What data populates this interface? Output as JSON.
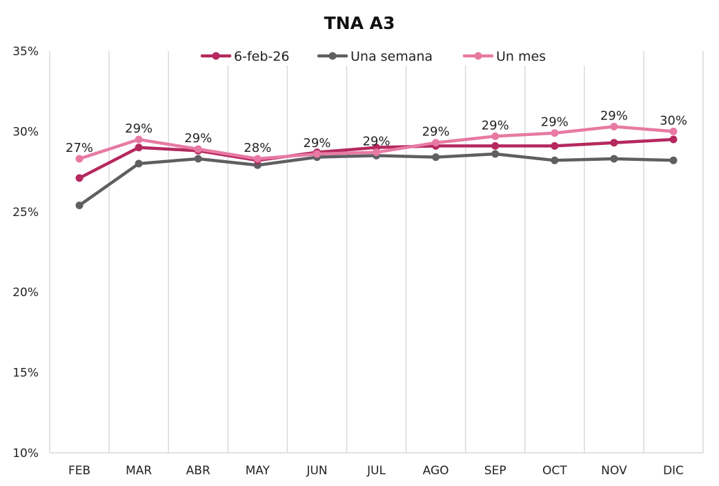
{
  "chart_data": {
    "type": "line",
    "title": "TNA A3",
    "xlabel": "",
    "ylabel": "",
    "categories": [
      "FEB",
      "MAR",
      "ABR",
      "MAY",
      "JUN",
      "JUL",
      "AGO",
      "SEP",
      "OCT",
      "NOV",
      "DIC"
    ],
    "ylim": [
      10,
      35
    ],
    "yticks": [
      10,
      15,
      20,
      25,
      30,
      35
    ],
    "ytick_labels": [
      "10%",
      "15%",
      "20%",
      "25%",
      "30%",
      "35%"
    ],
    "grid": "vertical",
    "legend_position": "top-center",
    "series": [
      {
        "name": "6-feb-26",
        "color": "#b5295e",
        "values": [
          27.1,
          29.0,
          28.8,
          28.2,
          28.7,
          29.0,
          29.1,
          29.1,
          29.1,
          29.3,
          29.5
        ]
      },
      {
        "name": "Una semana",
        "color": "#5f5f62",
        "values": [
          25.4,
          28.0,
          28.3,
          27.9,
          28.4,
          28.5,
          28.4,
          28.6,
          28.2,
          28.3,
          28.2
        ]
      },
      {
        "name": "Un mes",
        "color": "#e77aa3",
        "values": [
          28.3,
          29.5,
          28.9,
          28.3,
          28.6,
          28.7,
          29.3,
          29.7,
          29.9,
          30.3,
          30.0
        ]
      }
    ],
    "data_labels": [
      "27%",
      "29%",
      "29%",
      "28%",
      "29%",
      "29%",
      "29%",
      "29%",
      "29%",
      "29%",
      "30%"
    ]
  }
}
